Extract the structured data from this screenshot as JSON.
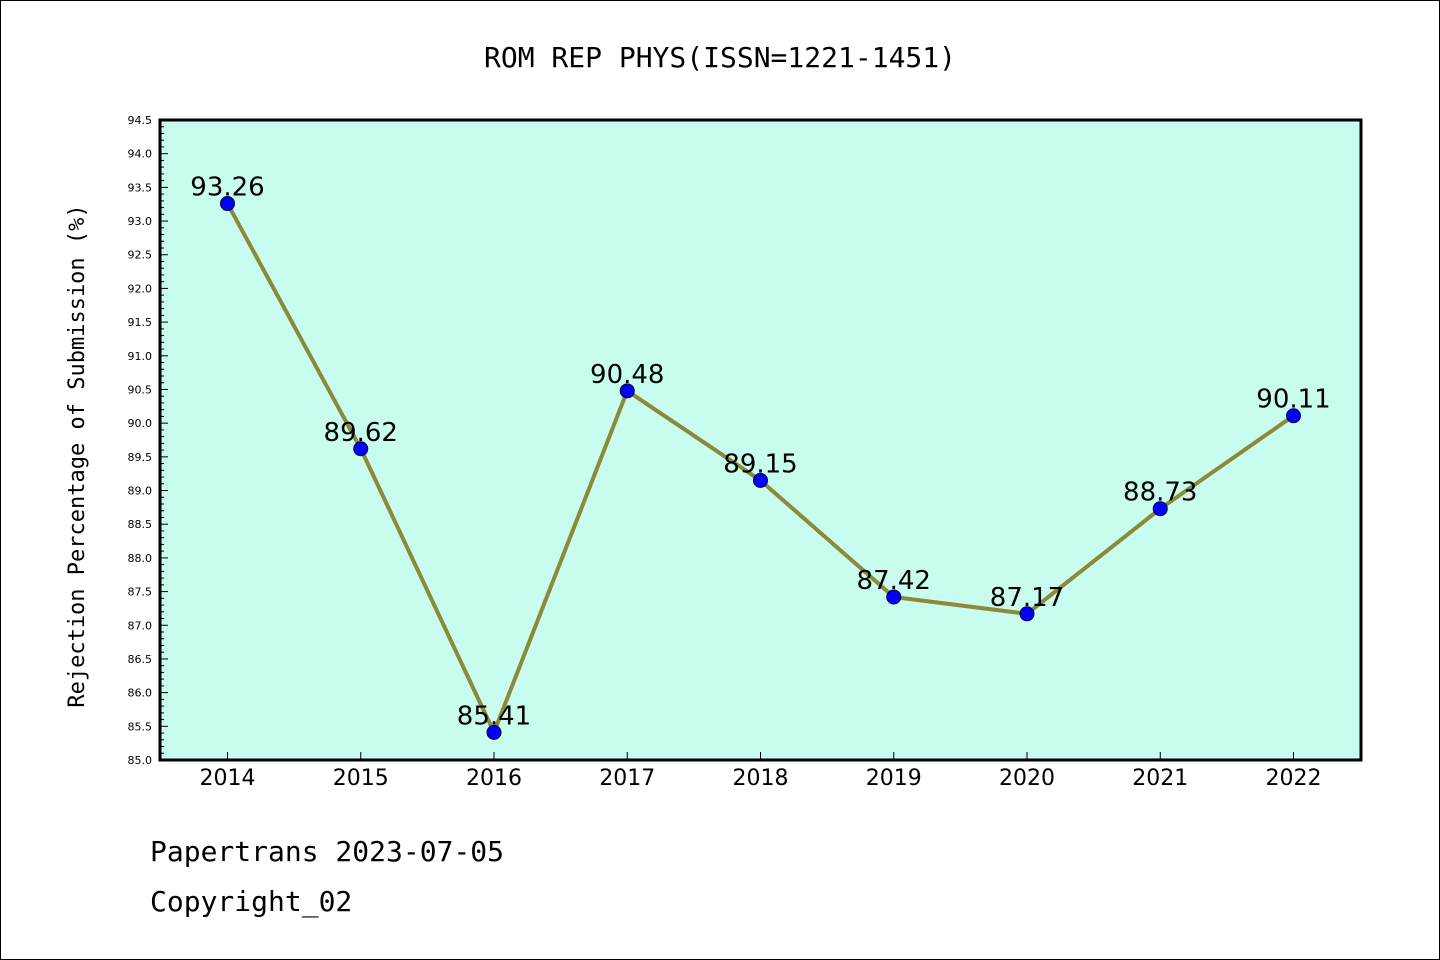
{
  "chart_data": {
    "type": "line",
    "title": "ROM REP PHYS(ISSN=1221-1451)",
    "xlabel": "",
    "ylabel": "Rejection Percentage of Submission (%)",
    "categories": [
      "2014",
      "2015",
      "2016",
      "2017",
      "2018",
      "2019",
      "2020",
      "2021",
      "2022"
    ],
    "series": [
      {
        "values": [
          93.26,
          89.62,
          85.41,
          90.48,
          89.15,
          87.42,
          87.17,
          88.73,
          90.11
        ],
        "data_labels": [
          "93.26",
          "89.62",
          "85.41",
          "90.48",
          "89.15",
          "87.42",
          "87.17",
          "88.73",
          "90.11"
        ]
      }
    ],
    "ylim": [
      85.0,
      94.5
    ],
    "ytick_labels": [
      "85.0",
      "85.5",
      "86.0",
      "86.5",
      "87.0",
      "87.5",
      "88.0",
      "88.5",
      "89.0",
      "89.5",
      "90.0",
      "90.5",
      "91.0",
      "91.5",
      "92.0",
      "92.5",
      "93.0",
      "93.5",
      "94.0",
      "94.5"
    ],
    "grid": false,
    "legend": "none",
    "colors": {
      "plot_background": "#c7fcee",
      "line": "#8c8a3a",
      "marker": "#0000ff"
    }
  },
  "footer": {
    "source": "Papertrans 2023-07-05",
    "copyright": "Copyright_02"
  }
}
